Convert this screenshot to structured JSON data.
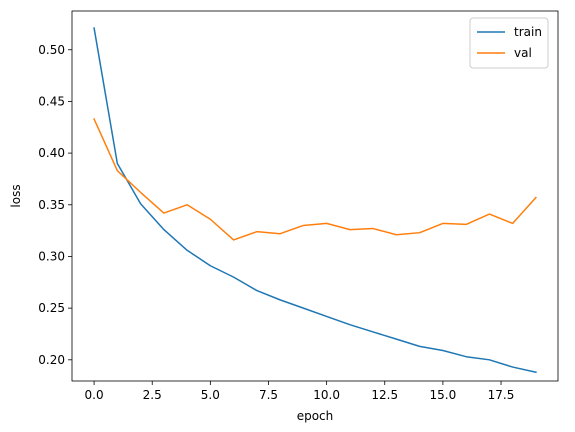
{
  "chart_data": {
    "type": "line",
    "title": "",
    "xlabel": "epoch",
    "ylabel": "loss",
    "xlim": [
      -0.95,
      19.95
    ],
    "ylim": [
      0.1795,
      0.5375
    ],
    "grid": false,
    "legend_position": "top-right",
    "x_ticks": [
      {
        "value": 0.0,
        "label": "0.0"
      },
      {
        "value": 2.5,
        "label": "2.5"
      },
      {
        "value": 5.0,
        "label": "5.0"
      },
      {
        "value": 7.5,
        "label": "7.5"
      },
      {
        "value": 10.0,
        "label": "10.0"
      },
      {
        "value": 12.5,
        "label": "12.5"
      },
      {
        "value": 15.0,
        "label": "15.0"
      },
      {
        "value": 17.5,
        "label": "17.5"
      }
    ],
    "y_ticks": [
      {
        "value": 0.2,
        "label": "0.20"
      },
      {
        "value": 0.25,
        "label": "0.25"
      },
      {
        "value": 0.3,
        "label": "0.30"
      },
      {
        "value": 0.35,
        "label": "0.35"
      },
      {
        "value": 0.4,
        "label": "0.40"
      },
      {
        "value": 0.45,
        "label": "0.45"
      },
      {
        "value": 0.5,
        "label": "0.50"
      }
    ],
    "x": [
      0,
      1,
      2,
      3,
      4,
      5,
      6,
      7,
      8,
      9,
      10,
      11,
      12,
      13,
      14,
      15,
      16,
      17,
      18,
      19
    ],
    "series": [
      {
        "name": "train",
        "color": "#1f77b4",
        "values": [
          0.521,
          0.39,
          0.351,
          0.326,
          0.306,
          0.291,
          0.28,
          0.267,
          0.258,
          0.25,
          0.242,
          0.234,
          0.227,
          0.22,
          0.213,
          0.209,
          0.203,
          0.2,
          0.193,
          0.188
        ]
      },
      {
        "name": "val",
        "color": "#ff7f0e",
        "values": [
          0.433,
          0.383,
          0.362,
          0.342,
          0.35,
          0.336,
          0.316,
          0.324,
          0.322,
          0.33,
          0.332,
          0.326,
          0.327,
          0.321,
          0.323,
          0.332,
          0.331,
          0.341,
          0.332,
          0.357
        ]
      }
    ]
  }
}
